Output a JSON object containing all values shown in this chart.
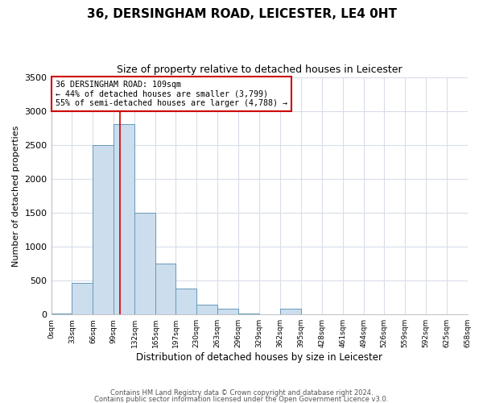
{
  "title": "36, DERSINGHAM ROAD, LEICESTER, LE4 0HT",
  "subtitle": "Size of property relative to detached houses in Leicester",
  "xlabel": "Distribution of detached houses by size in Leicester",
  "ylabel": "Number of detached properties",
  "bin_edges": [
    0,
    33,
    66,
    99,
    132,
    165,
    197,
    230,
    263,
    296,
    329,
    362,
    395,
    428,
    461,
    494,
    526,
    559,
    592,
    625,
    658
  ],
  "bin_counts": [
    20,
    460,
    2500,
    2800,
    1500,
    750,
    380,
    140,
    80,
    20,
    0,
    80,
    0,
    0,
    0,
    0,
    0,
    0,
    0,
    0
  ],
  "bar_color": "#ccdded",
  "bar_edge_color": "#6699bb",
  "vline_color": "#cc0000",
  "vline_x": 109,
  "annotation_text": "36 DERSINGHAM ROAD: 109sqm\n← 44% of detached houses are smaller (3,799)\n55% of semi-detached houses are larger (4,788) →",
  "annotation_box_color": "white",
  "annotation_box_edge": "#cc0000",
  "ylim": [
    0,
    3500
  ],
  "yticks": [
    0,
    500,
    1000,
    1500,
    2000,
    2500,
    3000,
    3500
  ],
  "tick_labels": [
    "0sqm",
    "33sqm",
    "66sqm",
    "99sqm",
    "132sqm",
    "165sqm",
    "197sqm",
    "230sqm",
    "263sqm",
    "296sqm",
    "329sqm",
    "362sqm",
    "395sqm",
    "428sqm",
    "461sqm",
    "494sqm",
    "526sqm",
    "559sqm",
    "592sqm",
    "625sqm",
    "658sqm"
  ],
  "footer_line1": "Contains HM Land Registry data © Crown copyright and database right 2024.",
  "footer_line2": "Contains public sector information licensed under the Open Government Licence v3.0.",
  "background_color": "#ffffff",
  "plot_background": "#ffffff",
  "grid_color": "#d8dde8"
}
